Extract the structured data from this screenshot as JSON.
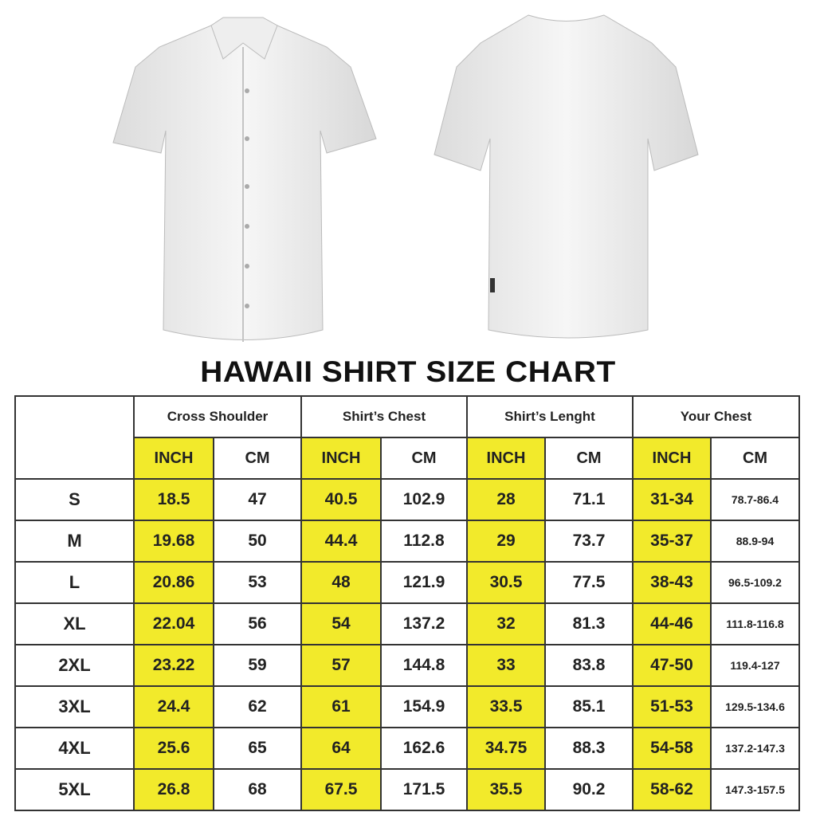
{
  "title": "HAWAII SHIRT SIZE CHART",
  "colors": {
    "highlight": "#f2ea2b",
    "border": "#333333"
  },
  "images": {
    "front": "shirt-front-image",
    "back": "shirt-back-image"
  },
  "table": {
    "groups": [
      "Cross Shoulder",
      "Shirt’s Chest",
      "Shirt’s Lenght",
      "Your Chest"
    ],
    "units": [
      "INCH",
      "CM",
      "INCH",
      "CM",
      "INCH",
      "CM",
      "INCH",
      "CM"
    ],
    "rows": [
      {
        "size": "S",
        "values": [
          "18.5",
          "47",
          "40.5",
          "102.9",
          "28",
          "71.1",
          "31-34",
          "78.7-86.4"
        ]
      },
      {
        "size": "M",
        "values": [
          "19.68",
          "50",
          "44.4",
          "112.8",
          "29",
          "73.7",
          "35-37",
          "88.9-94"
        ]
      },
      {
        "size": "L",
        "values": [
          "20.86",
          "53",
          "48",
          "121.9",
          "30.5",
          "77.5",
          "38-43",
          "96.5-109.2"
        ]
      },
      {
        "size": "XL",
        "values": [
          "22.04",
          "56",
          "54",
          "137.2",
          "32",
          "81.3",
          "44-46",
          "111.8-116.8"
        ]
      },
      {
        "size": "2XL",
        "values": [
          "23.22",
          "59",
          "57",
          "144.8",
          "33",
          "83.8",
          "47-50",
          "119.4-127"
        ]
      },
      {
        "size": "3XL",
        "values": [
          "24.4",
          "62",
          "61",
          "154.9",
          "33.5",
          "85.1",
          "51-53",
          "129.5-134.6"
        ]
      },
      {
        "size": "4XL",
        "values": [
          "25.6",
          "65",
          "64",
          "162.6",
          "34.75",
          "88.3",
          "54-58",
          "137.2-147.3"
        ]
      },
      {
        "size": "5XL",
        "values": [
          "26.8",
          "68",
          "67.5",
          "171.5",
          "35.5",
          "90.2",
          "58-62",
          "147.3-157.5"
        ]
      }
    ]
  }
}
